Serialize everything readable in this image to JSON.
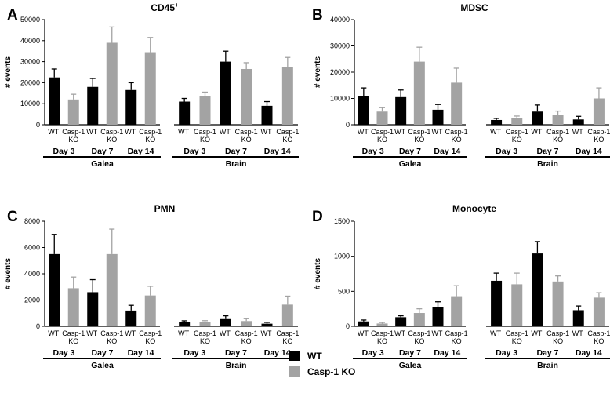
{
  "legend": {
    "wt_label": "WT",
    "ko_label": "Casp-1 KO",
    "wt_color": "#000000",
    "ko_color": "#a3a3a3"
  },
  "chart_data": [
    {
      "type": "bar",
      "panel": "A",
      "title": "CD45",
      "title_superscript": "+",
      "ylabel": "# events",
      "ylim": [
        0,
        50000
      ],
      "yticks": [
        0,
        10000,
        20000,
        30000,
        40000,
        50000
      ],
      "x_tick_labels": [
        "WT",
        "Casp-1 KO",
        "WT",
        "Casp-1 KO",
        "WT",
        "Casp-1 KO",
        "WT",
        "Casp-1 KO",
        "WT",
        "Casp-1 KO",
        "WT",
        "Casp-1 KO"
      ],
      "days": [
        "Day 3",
        "Day 7",
        "Day 14"
      ],
      "groups": [
        "Galea",
        "Brain"
      ],
      "series": [
        {
          "name": "Galea",
          "genotypes": [
            "WT",
            "Casp-1 KO",
            "WT",
            "Casp-1 KO",
            "WT",
            "Casp-1 KO"
          ],
          "values": [
            22500,
            12000,
            18000,
            39000,
            16500,
            34500
          ],
          "errors": [
            4000,
            2500,
            4000,
            7500,
            3500,
            7000
          ]
        },
        {
          "name": "Brain",
          "genotypes": [
            "WT",
            "Casp-1 KO",
            "WT",
            "Casp-1 KO",
            "WT",
            "Casp-1 KO"
          ],
          "values": [
            11000,
            13500,
            30000,
            26500,
            9000,
            27500
          ],
          "errors": [
            1500,
            2000,
            5000,
            3000,
            2000,
            4500
          ]
        }
      ]
    },
    {
      "type": "bar",
      "panel": "B",
      "title": "MDSC",
      "ylabel": "# events",
      "ylim": [
        0,
        40000
      ],
      "yticks": [
        0,
        10000,
        20000,
        30000,
        40000
      ],
      "x_tick_labels": [
        "WT",
        "Casp-1 KO",
        "WT",
        "Casp-1 KO",
        "WT",
        "Casp-1 KO",
        "WT",
        "Casp-1 KO",
        "WT",
        "Casp-1 KO",
        "WT",
        "Casp-1 KO"
      ],
      "days": [
        "Day 3",
        "Day 7",
        "Day 14"
      ],
      "groups": [
        "Galea",
        "Brain"
      ],
      "series": [
        {
          "name": "Galea",
          "genotypes": [
            "WT",
            "Casp-1 KO",
            "WT",
            "Casp-1 KO",
            "WT",
            "Casp-1 KO"
          ],
          "values": [
            11000,
            5000,
            10500,
            24000,
            5700,
            16000
          ],
          "errors": [
            3000,
            1500,
            2700,
            5500,
            2000,
            5500
          ]
        },
        {
          "name": "Brain",
          "genotypes": [
            "WT",
            "Casp-1 KO",
            "WT",
            "Casp-1 KO",
            "WT",
            "Casp-1 KO"
          ],
          "values": [
            1800,
            2500,
            5000,
            3700,
            2000,
            10000
          ],
          "errors": [
            600,
            800,
            2500,
            1500,
            1200,
            4000
          ]
        }
      ]
    },
    {
      "type": "bar",
      "panel": "C",
      "title": "PMN",
      "ylabel": "# events",
      "ylim": [
        0,
        8000
      ],
      "yticks": [
        0,
        2000,
        4000,
        6000,
        8000
      ],
      "x_tick_labels": [
        "WT",
        "Casp-1 KO",
        "WT",
        "Casp-1 KO",
        "WT",
        "Casp-1 KO",
        "WT",
        "Casp-1 KO",
        "WT",
        "Casp-1 KO",
        "WT",
        "Casp-1 KO"
      ],
      "days": [
        "Day 3",
        "Day 7",
        "Day 14"
      ],
      "groups": [
        "Galea",
        "Brain"
      ],
      "series": [
        {
          "name": "Galea",
          "genotypes": [
            "WT",
            "Casp-1 KO",
            "WT",
            "Casp-1 KO",
            "WT",
            "Casp-1 KO"
          ],
          "values": [
            5500,
            2900,
            2600,
            5500,
            1200,
            2350
          ],
          "errors": [
            1500,
            850,
            950,
            1900,
            400,
            700
          ]
        },
        {
          "name": "Brain",
          "genotypes": [
            "WT",
            "Casp-1 KO",
            "WT",
            "Casp-1 KO",
            "WT",
            "Casp-1 KO"
          ],
          "values": [
            300,
            350,
            550,
            400,
            200,
            1650
          ],
          "errors": [
            120,
            80,
            250,
            180,
            100,
            650
          ]
        }
      ]
    },
    {
      "type": "bar",
      "panel": "D",
      "title": "Monocyte",
      "ylabel": "# events",
      "ylim": [
        0,
        1500
      ],
      "yticks": [
        0,
        500,
        1000,
        1500
      ],
      "x_tick_labels": [
        "WT",
        "Casp-1 KO",
        "WT",
        "Casp-1 KO",
        "WT",
        "Casp-1 KO",
        "WT",
        "Casp-1 KO",
        "WT",
        "Casp-1 KO",
        "WT",
        "Casp-1 KO"
      ],
      "days": [
        "Day 3",
        "Day 7",
        "Day 14"
      ],
      "groups": [
        "Galea",
        "Brain"
      ],
      "series": [
        {
          "name": "Galea",
          "genotypes": [
            "WT",
            "Casp-1 KO",
            "WT",
            "Casp-1 KO",
            "WT",
            "Casp-1 KO"
          ],
          "values": [
            70,
            40,
            130,
            190,
            270,
            430
          ],
          "errors": [
            20,
            15,
            20,
            60,
            80,
            150
          ]
        },
        {
          "name": "Brain",
          "genotypes": [
            "WT",
            "Casp-1 KO",
            "WT",
            "Casp-1 KO",
            "WT",
            "Casp-1 KO"
          ],
          "values": [
            650,
            600,
            1040,
            640,
            230,
            410
          ],
          "errors": [
            110,
            160,
            170,
            80,
            60,
            70
          ]
        }
      ]
    }
  ]
}
